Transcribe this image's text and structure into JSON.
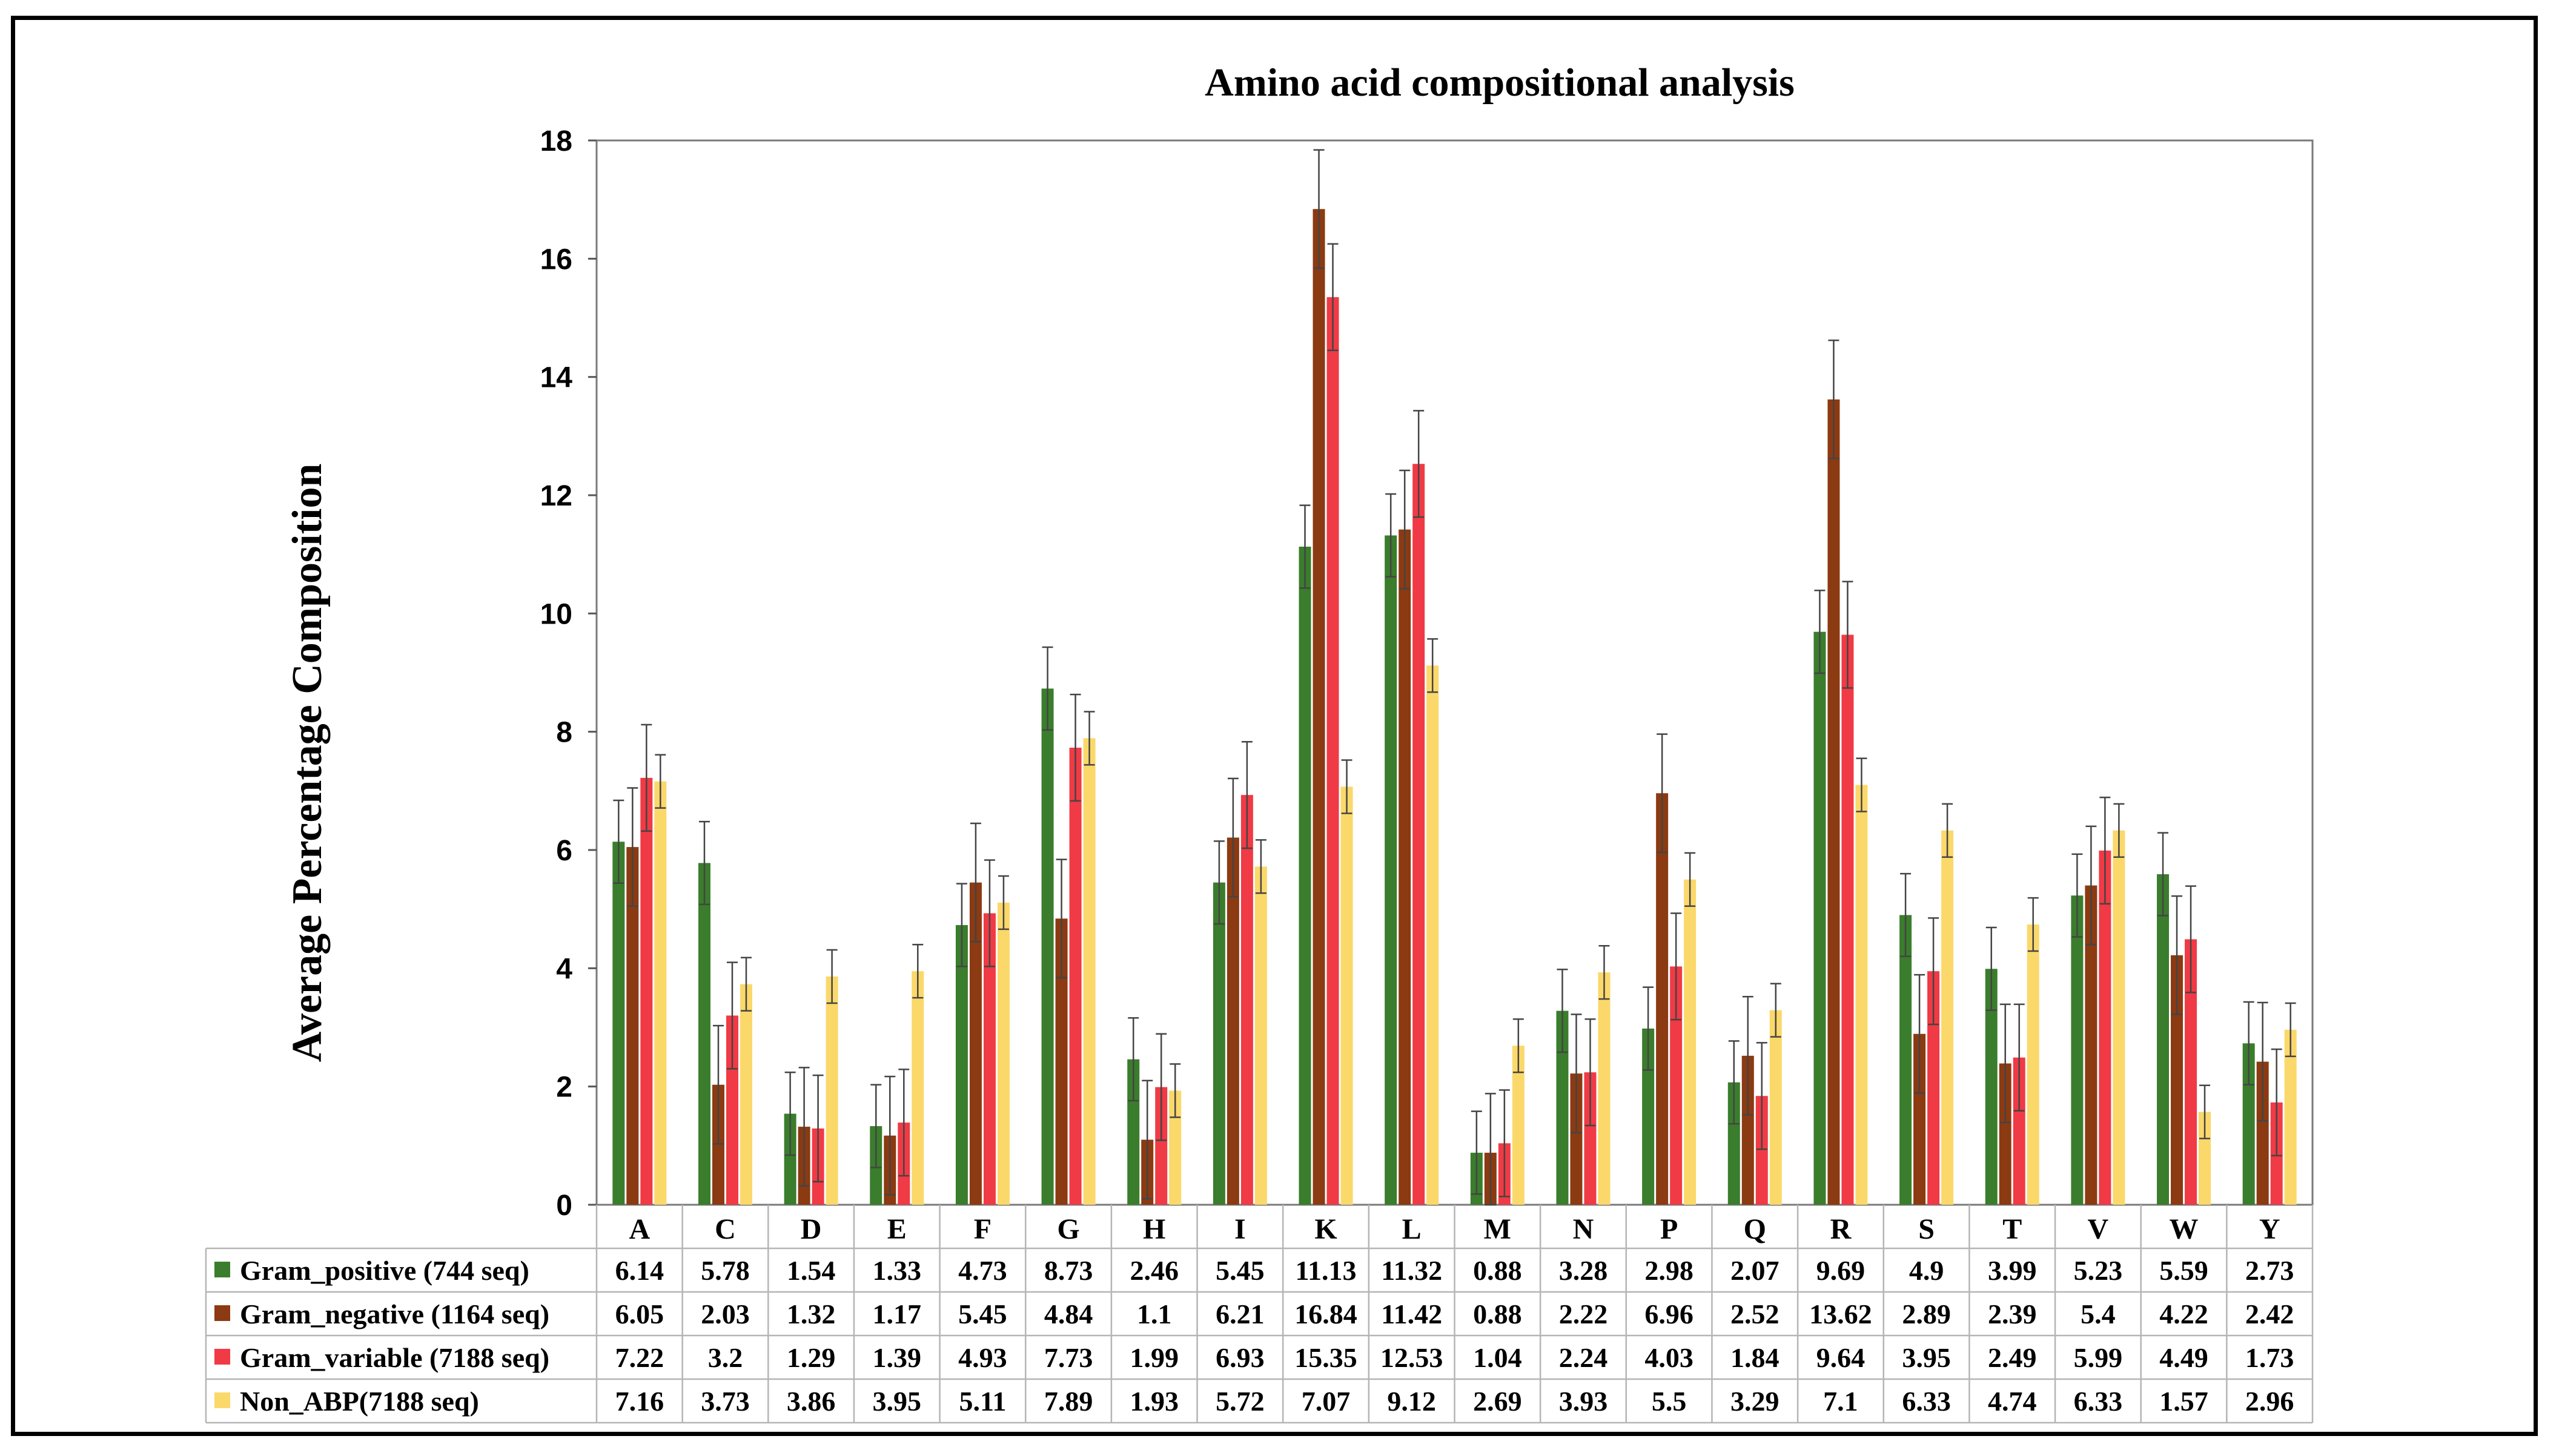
{
  "chart_data": {
    "type": "bar",
    "title": "Amino acid compositional analysis",
    "xlabel": "",
    "ylabel": "Average Percentage Composition",
    "ylim": [
      0,
      18
    ],
    "yticks": [
      0,
      2,
      4,
      6,
      8,
      10,
      12,
      14,
      16,
      18
    ],
    "grid": false,
    "categories": [
      "A",
      "C",
      "D",
      "E",
      "F",
      "G",
      "H",
      "I",
      "K",
      "L",
      "M",
      "N",
      "P",
      "Q",
      "R",
      "S",
      "T",
      "V",
      "W",
      "Y"
    ],
    "series": [
      {
        "name": "Gram_positive (744 seq)",
        "color": "#3a7d2c",
        "values": [
          6.14,
          5.78,
          1.54,
          1.33,
          4.73,
          8.73,
          2.46,
          5.45,
          11.13,
          11.32,
          0.88,
          3.28,
          2.98,
          2.07,
          9.69,
          4.9,
          3.99,
          5.23,
          5.59,
          2.73
        ],
        "errors": [
          0.7,
          0.7,
          0.7,
          0.7,
          0.7,
          0.7,
          0.7,
          0.7,
          0.7,
          0.7,
          0.7,
          0.7,
          0.7,
          0.7,
          0.7,
          0.7,
          0.7,
          0.7,
          0.7,
          0.7
        ]
      },
      {
        "name": "Gram_negative (1164 seq)",
        "color": "#8b3a12",
        "values": [
          6.05,
          2.03,
          1.32,
          1.17,
          5.45,
          4.84,
          1.1,
          6.21,
          16.84,
          11.42,
          0.88,
          2.22,
          6.96,
          2.52,
          13.62,
          2.89,
          2.39,
          5.4,
          4.22,
          2.42
        ],
        "errors": [
          1.0,
          1.0,
          1.0,
          1.0,
          1.0,
          1.0,
          1.0,
          1.0,
          1.0,
          1.0,
          1.0,
          1.0,
          1.0,
          1.0,
          1.0,
          1.0,
          1.0,
          1.0,
          1.0,
          1.0
        ]
      },
      {
        "name": "Gram_variable (7188 seq)",
        "color": "#f03a45",
        "values": [
          7.22,
          3.2,
          1.29,
          1.39,
          4.93,
          7.73,
          1.99,
          6.93,
          15.35,
          12.53,
          1.04,
          2.24,
          4.03,
          1.84,
          9.64,
          3.95,
          2.49,
          5.99,
          4.49,
          1.73
        ],
        "errors": [
          0.9,
          0.9,
          0.9,
          0.9,
          0.9,
          0.9,
          0.9,
          0.9,
          0.9,
          0.9,
          0.9,
          0.9,
          0.9,
          0.9,
          0.9,
          0.9,
          0.9,
          0.9,
          0.9,
          0.9
        ]
      },
      {
        "name": "Non_ABP(7188 seq)",
        "color": "#fbd86a",
        "values": [
          7.16,
          3.73,
          3.86,
          3.95,
          5.11,
          7.89,
          1.93,
          5.72,
          7.07,
          9.12,
          2.69,
          3.93,
          5.5,
          3.29,
          7.1,
          6.33,
          4.74,
          6.33,
          1.57,
          2.96
        ],
        "errors": [
          0.45,
          0.45,
          0.45,
          0.45,
          0.45,
          0.45,
          0.45,
          0.45,
          0.45,
          0.45,
          0.45,
          0.45,
          0.45,
          0.45,
          0.45,
          0.45,
          0.45,
          0.45,
          0.45,
          0.45
        ]
      }
    ],
    "legend_placement": "data-table-below"
  }
}
